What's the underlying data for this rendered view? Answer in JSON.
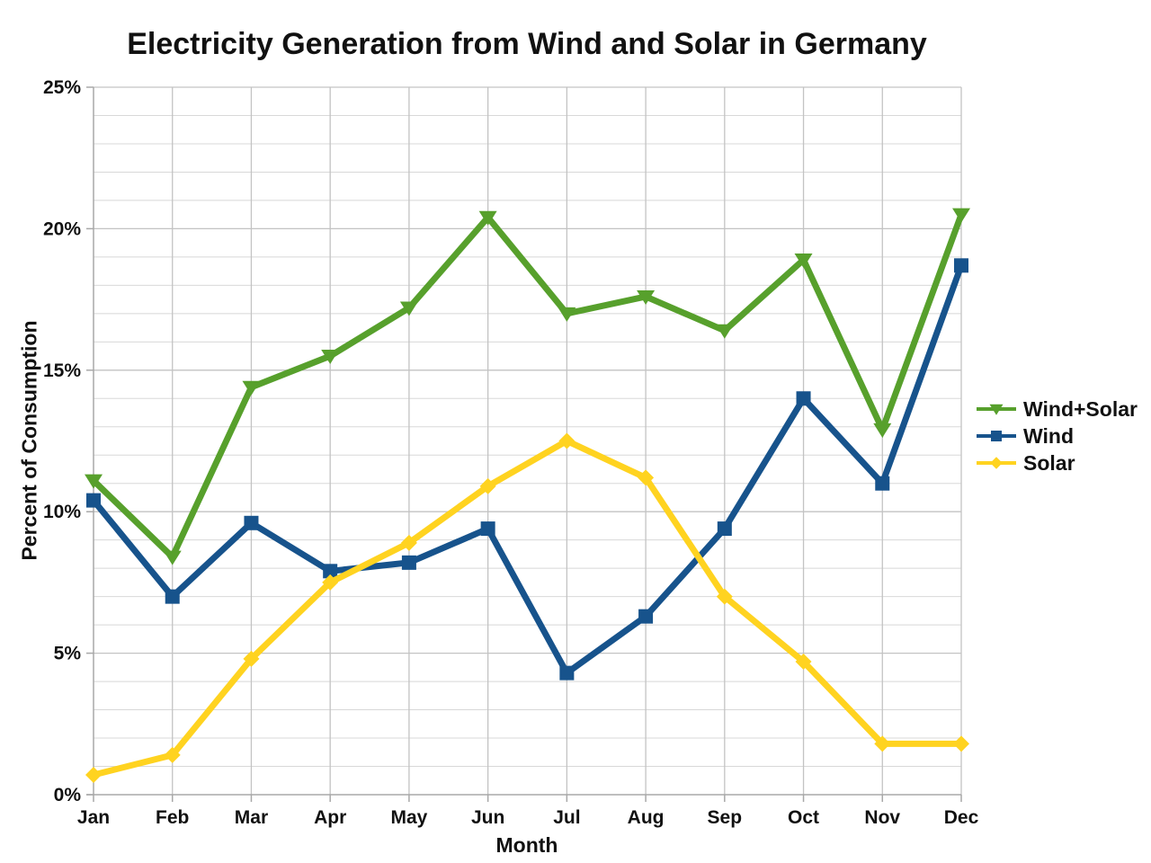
{
  "chart_data": {
    "type": "line",
    "title": "Electricity Generation from Wind and Solar in Germany",
    "xlabel": "Month",
    "ylabel": "Percent of Consumption",
    "categories": [
      "Jan",
      "Feb",
      "Mar",
      "Apr",
      "May",
      "Jun",
      "Jul",
      "Aug",
      "Sep",
      "Oct",
      "Nov",
      "Dec"
    ],
    "y_ticks": [
      "0%",
      "5%",
      "10%",
      "15%",
      "20%",
      "25%"
    ],
    "ylim": [
      0,
      25
    ],
    "y_major_step": 5,
    "y_minor_step": 1,
    "grid": true,
    "legend_position": "right",
    "series": [
      {
        "name": "Wind+Solar",
        "color": "#57A02C",
        "marker": "triangle-down",
        "values": [
          11.1,
          8.4,
          14.4,
          15.5,
          17.2,
          20.4,
          17.0,
          17.6,
          16.4,
          18.9,
          12.9,
          20.5
        ]
      },
      {
        "name": "Wind",
        "color": "#17538C",
        "marker": "square",
        "values": [
          10.4,
          7.0,
          9.6,
          7.9,
          8.2,
          9.4,
          4.3,
          6.3,
          9.4,
          14.0,
          11.0,
          18.7
        ]
      },
      {
        "name": "Solar",
        "color": "#FFD320",
        "marker": "diamond",
        "values": [
          0.7,
          1.4,
          4.8,
          7.5,
          8.9,
          10.9,
          12.5,
          11.2,
          7.0,
          4.7,
          1.8,
          1.8
        ]
      }
    ],
    "colors": {
      "axis": "#a8a8a8",
      "grid_major": "#c3c3c3",
      "grid_minor": "#d8d8d8",
      "text": "#111111"
    }
  }
}
